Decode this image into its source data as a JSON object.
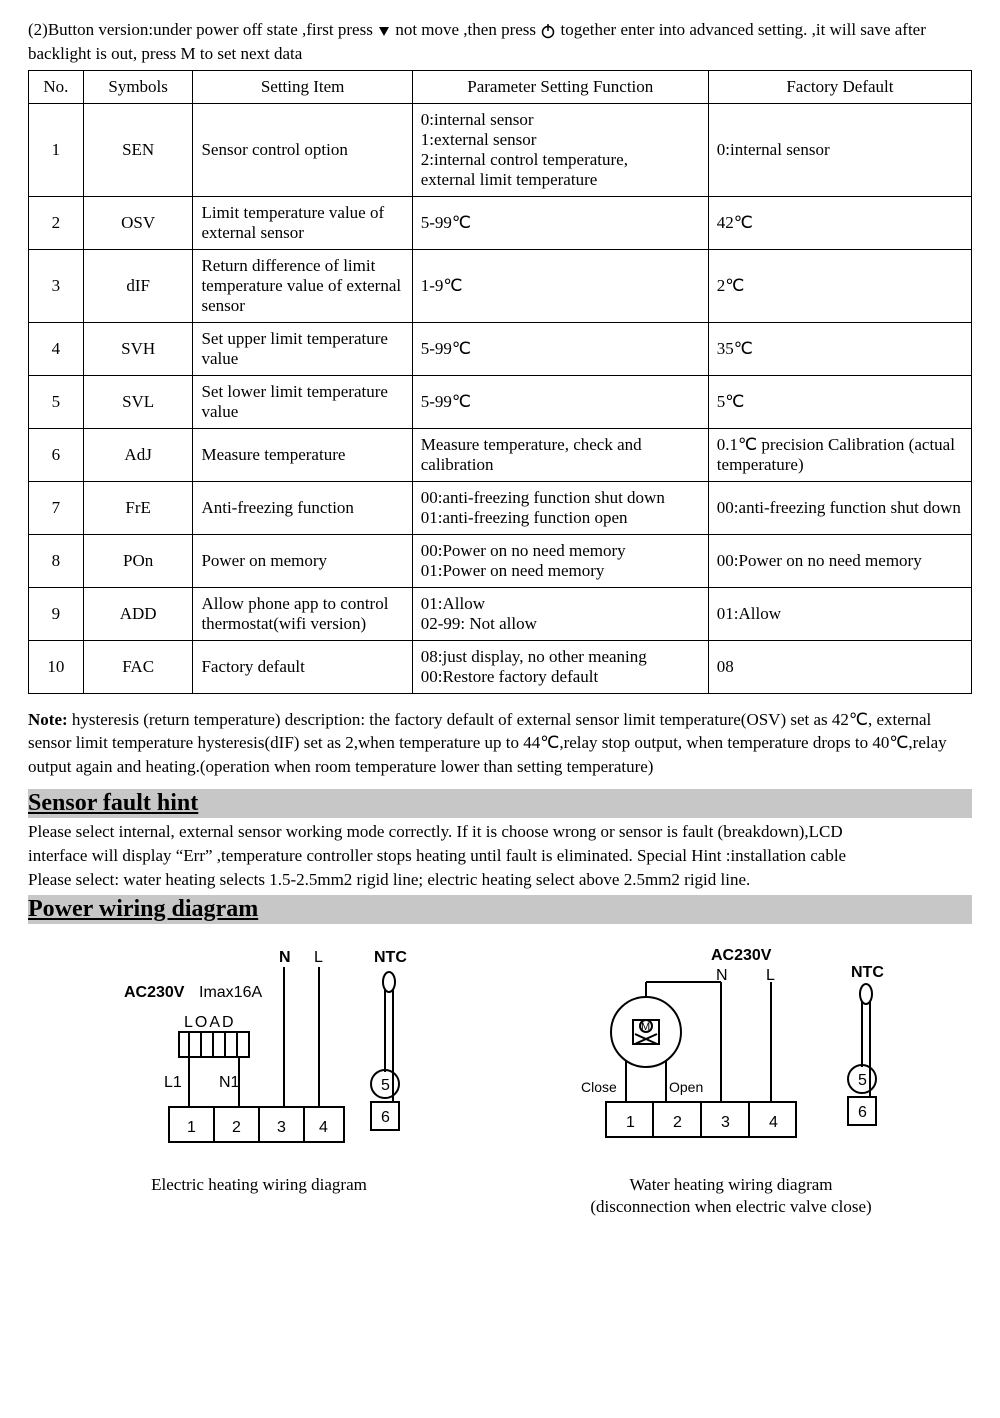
{
  "intro": {
    "part1": "(2)Button version:under power off state ,first press ",
    "part2": " not move ,then press  ",
    "part3": "  together enter into advanced setting. ,it will save after backlight is out, press M    to set next data"
  },
  "table": {
    "headers": [
      "No.",
      "Symbols",
      "Setting Item",
      "Parameter Setting Function",
      "Factory Default"
    ],
    "rows": [
      {
        "no": "1",
        "sym": "SEN",
        "item": "Sensor control option",
        "func": "0:internal sensor\n1:external sensor\n2:internal control temperature,\n    external limit temperature",
        "def": "0:internal sensor"
      },
      {
        "no": "2",
        "sym": "OSV",
        "item": "Limit temperature value of external sensor",
        "func": "5-99℃",
        "def": "42℃"
      },
      {
        "no": "3",
        "sym": "dIF",
        "item": "Return difference of limit temperature value of external sensor",
        "func": "1-9℃",
        "def": "2℃"
      },
      {
        "no": "4",
        "sym": "SVH",
        "item": "Set upper limit temperature value",
        "func": "5-99℃",
        "def": "35℃"
      },
      {
        "no": "5",
        "sym": "SVL",
        "item": "Set lower limit temperature value",
        "func": "5-99℃",
        "def": "5℃"
      },
      {
        "no": "6",
        "sym": "AdJ",
        "item": "Measure temperature",
        "func": "Measure temperature, check and calibration",
        "def": "0.1℃ precision Calibration (actual\n temperature)"
      },
      {
        "no": "7",
        "sym": "FrE",
        "item": "Anti-freezing function",
        "func": "00:anti-freezing function shut down\n01:anti-freezing function open",
        "def": "00:anti-freezing function shut down",
        "justify_func": true
      },
      {
        "no": "8",
        "sym": "POn",
        "item": "Power on memory",
        "func": "00:Power on no need memory\n01:Power on need memory",
        "def": "00:Power on no need memory"
      },
      {
        "no": "9",
        "sym": "ADD",
        "item": "Allow phone app to control thermostat(wifi version)",
        "func": "01:Allow\n02-99: Not allow",
        "def": "01:Allow",
        "justify_item": true
      },
      {
        "no": "10",
        "sym": "FAC",
        "item": "Factory default",
        "func": "08:just display, no other meaning\n00:Restore factory default",
        "def": "08"
      }
    ]
  },
  "note": {
    "label": "Note:",
    "text": " hysteresis (return temperature) description: the factory default of external sensor limit temperature(OSV) set as 42℃, external sensor limit temperature hysteresis(dIF) set as 2,when temperature up to 44℃,relay stop output, when temperature drops to 40℃,relay output again and heating.(operation when room temperature lower than setting temperature)"
  },
  "sensor_fault": {
    "heading": "Sensor fault hint",
    "body": "Please select internal, external sensor working mode correctly. If it is choose wrong or sensor is fault (breakdown),LCD\n  interface will display “Err” ,temperature controller stops heating until fault is eliminated. Special Hint :installation cable\nPlease select: water heating selects 1.5-2.5mm2 rigid line; electric heating select above 2.5mm2 rigid line."
  },
  "wiring": {
    "heading": "Power wiring diagram",
    "left_caption": "Electric heating wiring diagram",
    "right_caption": "Water heating wiring diagram\n(disconnection when electric valve close)",
    "labels": {
      "N": "N",
      "L": "L",
      "NTC": "NTC",
      "AC230V": "AC230V",
      "Imax": "Imax16A",
      "LOAD": "LOAD",
      "L1": "L1",
      "N1": "N1",
      "Close": "Close",
      "Open": "Open",
      "t1": "1",
      "t2": "2",
      "t3": "3",
      "t4": "4",
      "t5": "5",
      "t6": "6"
    }
  },
  "style": {
    "border_color": "#000000",
    "heading_bg": "#c7c7c7",
    "font_family": "Times New Roman",
    "base_font_size": 17
  }
}
